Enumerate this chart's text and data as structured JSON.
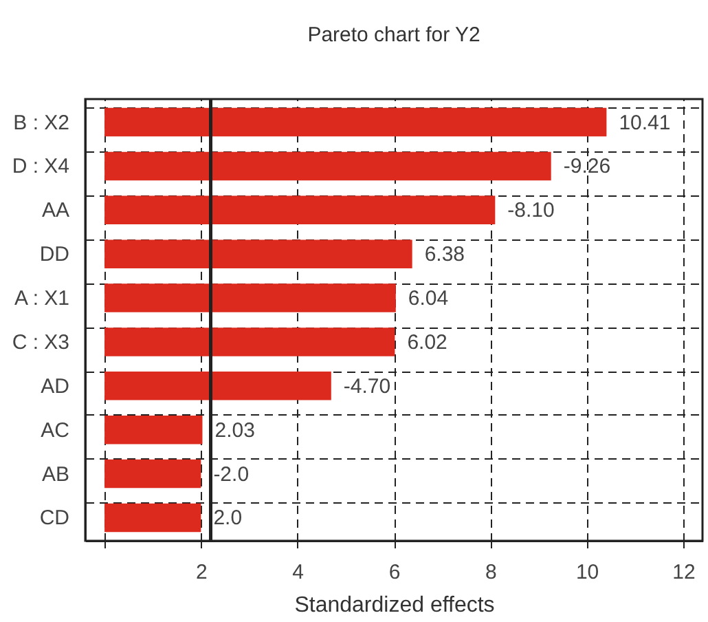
{
  "chart_data": {
    "type": "bar",
    "orientation": "horizontal",
    "title": "Pareto chart for Y2",
    "xlabel": "Standardized effects",
    "categories": [
      "B : X2",
      "D : X4",
      "AA",
      "DD",
      "A : X1",
      "C : X3",
      "AD",
      "AC",
      "AB",
      "CD"
    ],
    "values": [
      10.41,
      9.26,
      8.1,
      6.38,
      6.04,
      6.02,
      4.7,
      2.03,
      2.0,
      2.0
    ],
    "annotations": [
      {
        "text": "10.41",
        "x": 10.41,
        "y": "B : X2"
      },
      {
        "text": "-9.26",
        "x": 9.26,
        "y": "D : X4"
      },
      {
        "text": "-8.10",
        "x": 8.1,
        "y": "AA"
      },
      {
        "text": "6.38",
        "x": 6.38,
        "y": "DD"
      },
      {
        "text": "6.04",
        "x": 6.04,
        "y": "A : X1"
      },
      {
        "text": "6.02",
        "x": 6.02,
        "y": "C : X3"
      },
      {
        "text": "-4.70",
        "x": 4.7,
        "y": "AD"
      },
      {
        "text": "2.03",
        "x": 2.03,
        "y": "AC"
      },
      {
        "text": "-2.0",
        "x": 2.0,
        "y": "AB"
      },
      {
        "text": "2.0",
        "x": 2.0,
        "y": "CD"
      }
    ],
    "color": "#dd2a1e",
    "xlim": [
      -0.4,
      12.4
    ],
    "xticks": [
      {
        "value": 0,
        "label": null
      },
      2,
      4,
      6,
      8,
      10,
      12
    ],
    "grid": true,
    "ref_lines": [
      {
        "axis": "x",
        "value": 2.2,
        "color": "#222222",
        "line_style": "solid"
      }
    ]
  }
}
